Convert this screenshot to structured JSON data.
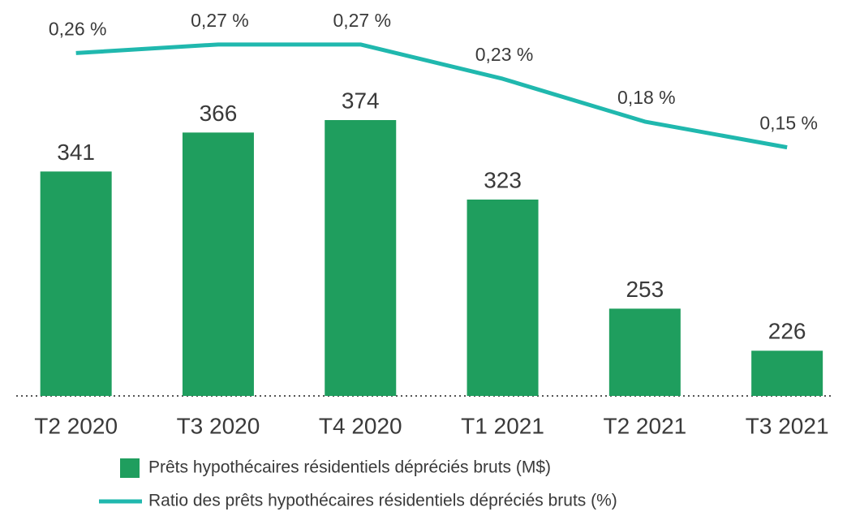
{
  "chart_data": {
    "type": "bar_line",
    "categories": [
      "T2 2020",
      "T3 2020",
      "T4 2020",
      "T1 2021",
      "T2 2021",
      "T3 2021"
    ],
    "series": [
      {
        "name": "Prêts hypothécaires résidentiels dépréciés bruts (M$)",
        "type": "bar",
        "color": "#1f9e5e",
        "values": [
          341,
          366,
          374,
          323,
          253,
          226
        ]
      },
      {
        "name": "Ratio des prêts hypothécaires résidentiels dépréciés bruts (%)",
        "type": "line",
        "axis": "y2",
        "color": "#20b8ae",
        "values": [
          0.26,
          0.27,
          0.27,
          0.23,
          0.18,
          0.15
        ],
        "value_labels": [
          "0,26 %",
          "0,27 %",
          "0,27 %",
          "0,23 %",
          "0,18 %",
          "0,15 %"
        ]
      }
    ],
    "ylim": [
      197,
      450
    ],
    "y2lim": [
      -0.14,
      0.32
    ],
    "grid": false,
    "legend": "bottom"
  }
}
